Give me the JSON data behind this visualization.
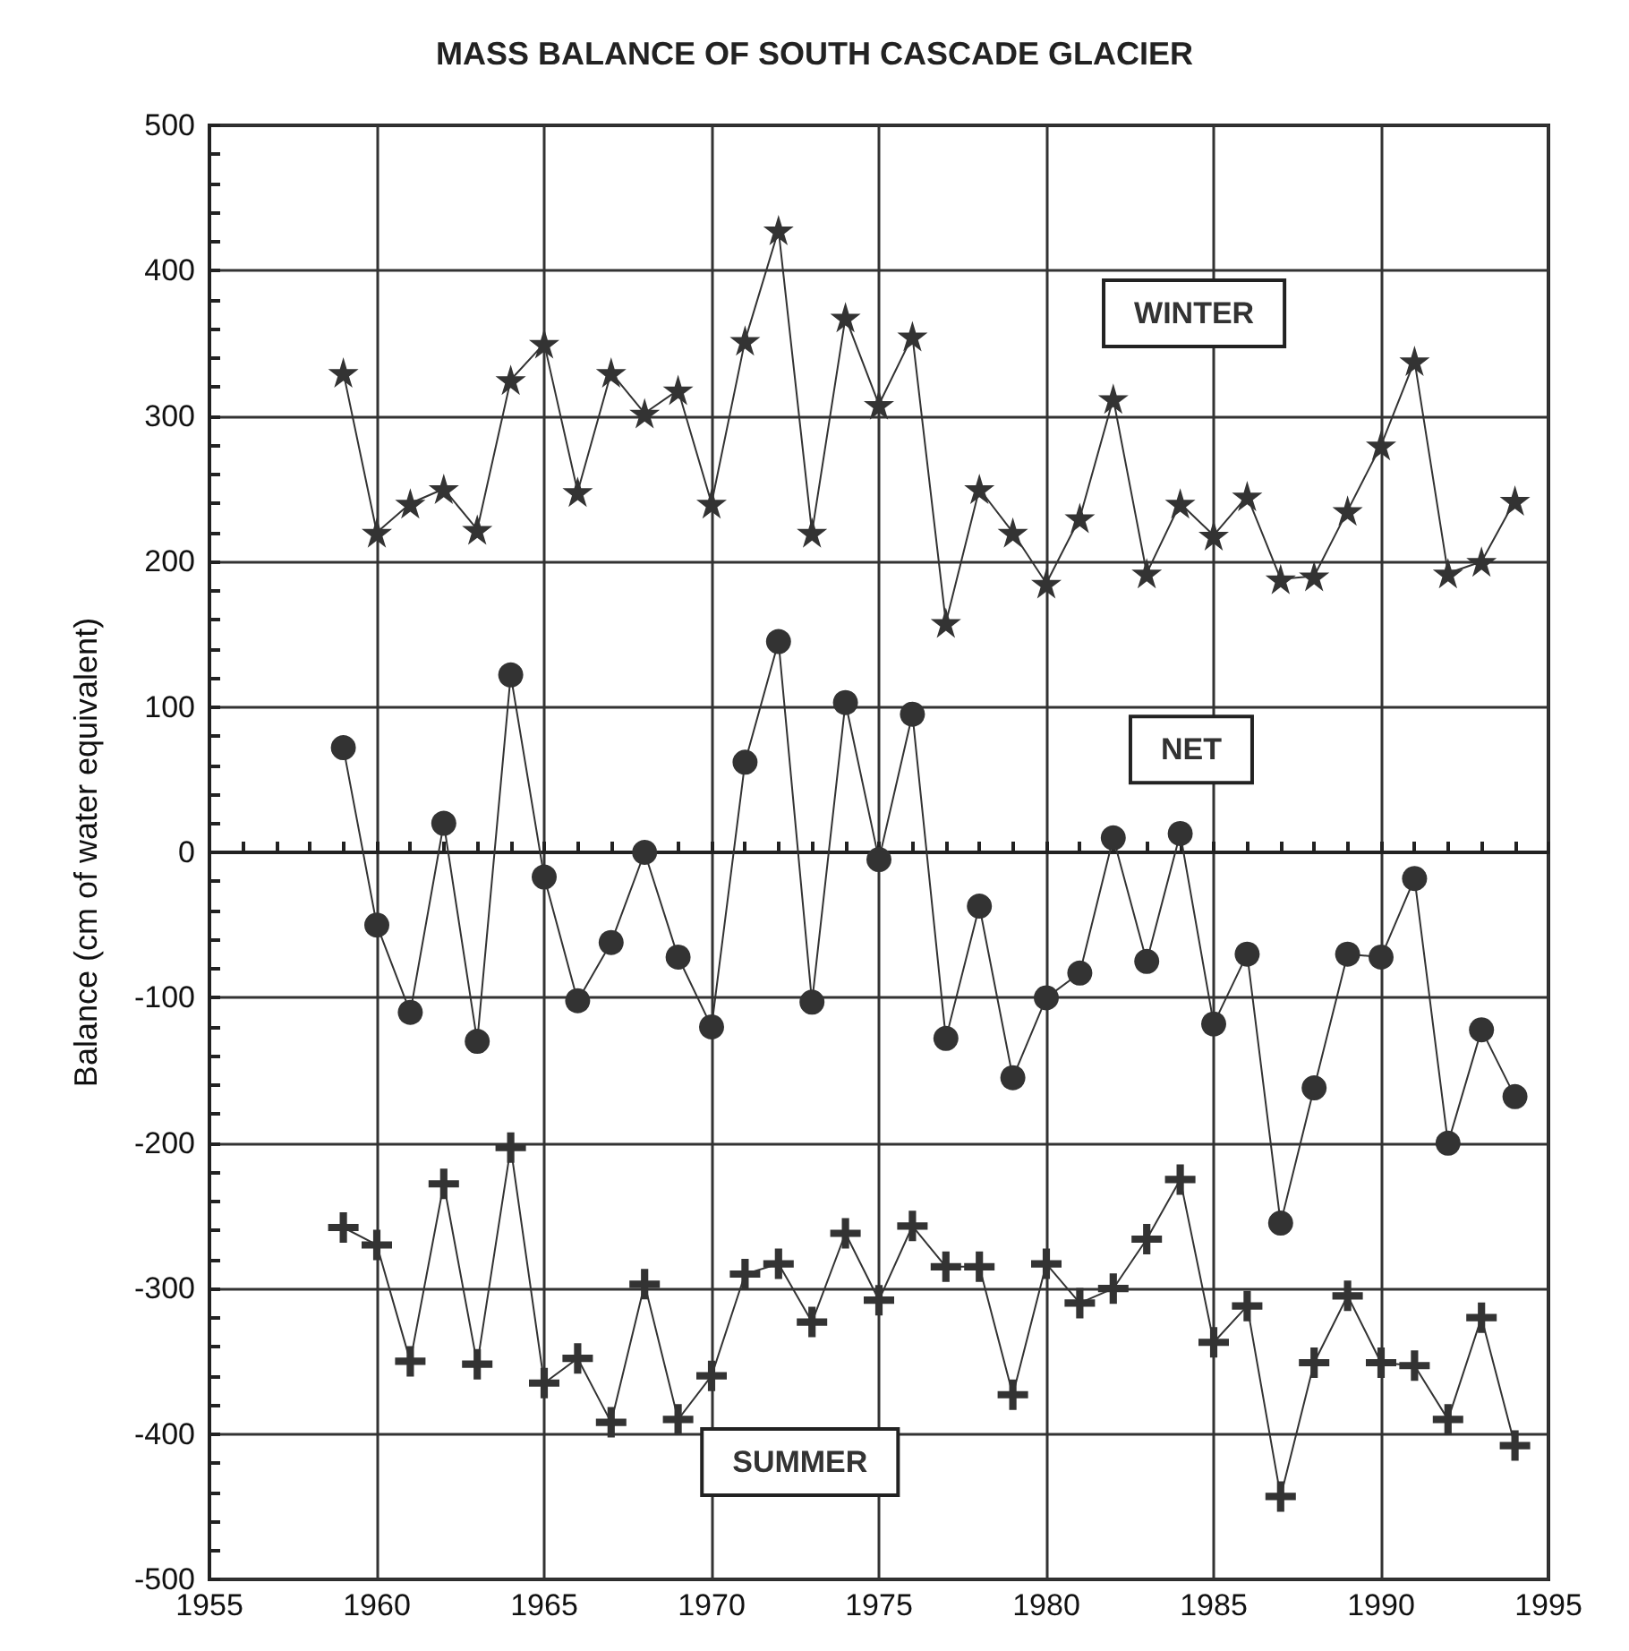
{
  "chart_data": {
    "type": "line",
    "title": "MASS BALANCE OF SOUTH CASCADE GLACIER",
    "ylabel": "Balance (cm of water equivalent)",
    "x": [
      1959,
      1960,
      1961,
      1962,
      1963,
      1964,
      1965,
      1966,
      1967,
      1968,
      1969,
      1970,
      1971,
      1972,
      1973,
      1974,
      1975,
      1976,
      1977,
      1978,
      1979,
      1980,
      1981,
      1982,
      1983,
      1984,
      1985,
      1986,
      1987,
      1988,
      1989,
      1990,
      1991,
      1992,
      1993,
      1994
    ],
    "series": [
      {
        "name": "WINTER",
        "color": "#333333",
        "marker": "star",
        "values": [
          330,
          220,
          240,
          250,
          222,
          325,
          350,
          248,
          330,
          302,
          318,
          240,
          352,
          428,
          220,
          368,
          308,
          355,
          158,
          250,
          220,
          185,
          230,
          312,
          192,
          240,
          218,
          245,
          188,
          190,
          235,
          280,
          338,
          192,
          200,
          242
        ]
      },
      {
        "name": "NET",
        "color": "#333333",
        "marker": "circle",
        "values": [
          72,
          -50,
          -110,
          20,
          -130,
          122,
          -17,
          -102,
          -62,
          0,
          -72,
          -120,
          62,
          145,
          -103,
          103,
          -5,
          95,
          -128,
          -37,
          -155,
          -100,
          -83,
          10,
          -75,
          13,
          -118,
          -70,
          -255,
          -162,
          -70,
          -72,
          -18,
          -200,
          -122,
          -168
        ]
      },
      {
        "name": "SUMMER",
        "color": "#333333",
        "marker": "cross",
        "values": [
          -258,
          -270,
          -350,
          -228,
          -352,
          -203,
          -365,
          -348,
          -392,
          -297,
          -390,
          -360,
          -290,
          -283,
          -323,
          -262,
          -308,
          -257,
          -285,
          -285,
          -373,
          -283,
          -310,
          -300,
          -266,
          -225,
          -337,
          -312,
          -443,
          -351,
          -305,
          -351,
          -353,
          -390,
          -320,
          -408
        ]
      }
    ],
    "xlim": [
      1955,
      1995
    ],
    "xticks": [
      1955,
      1960,
      1965,
      1970,
      1975,
      1980,
      1985,
      1990,
      1995
    ],
    "ylim": [
      -500,
      500
    ],
    "yticks": [
      -500,
      -400,
      -300,
      -200,
      -100,
      0,
      100,
      200,
      300,
      400,
      500
    ],
    "grid": true,
    "line_style": "solid"
  }
}
